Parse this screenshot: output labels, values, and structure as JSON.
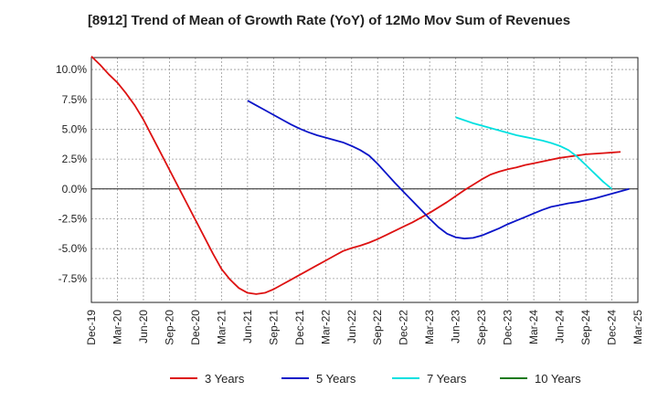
{
  "chart_data": {
    "type": "line",
    "title": "[8912]  Trend of Mean of Growth Rate (YoY) of 12Mo Mov Sum of Revenues",
    "xlabel": "",
    "ylabel": "",
    "ylim": [
      -9.5,
      11.0
    ],
    "y_ticks": [
      {
        "value": 10.0,
        "label": "10.0%"
      },
      {
        "value": 7.5,
        "label": "7.5%"
      },
      {
        "value": 5.0,
        "label": "5.0%"
      },
      {
        "value": 2.5,
        "label": "2.5%"
      },
      {
        "value": 0.0,
        "label": "0.0%"
      },
      {
        "value": -2.5,
        "label": "-2.5%"
      },
      {
        "value": -5.0,
        "label": "-5.0%"
      },
      {
        "value": -7.5,
        "label": "-7.5%"
      }
    ],
    "x_start": "Dec-19",
    "x_month_count": 63,
    "x_ticks": [
      "Dec-19",
      "Mar-20",
      "Jun-20",
      "Sep-20",
      "Dec-20",
      "Mar-21",
      "Jun-21",
      "Sep-21",
      "Dec-21",
      "Mar-22",
      "Jun-22",
      "Sep-22",
      "Dec-22",
      "Mar-23",
      "Jun-23",
      "Sep-23",
      "Dec-23",
      "Mar-24",
      "Jun-24",
      "Sep-24",
      "Dec-24",
      "Mar-25"
    ],
    "series": [
      {
        "name": "3 Years",
        "color": "#dd1111",
        "start_index": 0,
        "values": [
          11.1,
          10.4,
          9.6,
          8.9,
          8.0,
          7.0,
          5.8,
          4.4,
          3.0,
          1.6,
          0.2,
          -1.2,
          -2.6,
          -4.0,
          -5.4,
          -6.7,
          -7.6,
          -8.3,
          -8.7,
          -8.8,
          -8.7,
          -8.4,
          -8.0,
          -7.6,
          -7.2,
          -6.8,
          -6.4,
          -6.0,
          -5.6,
          -5.2,
          -4.95,
          -4.75,
          -4.5,
          -4.2,
          -3.85,
          -3.5,
          -3.15,
          -2.8,
          -2.4,
          -2.0,
          -1.55,
          -1.1,
          -0.6,
          -0.1,
          0.35,
          0.8,
          1.2,
          1.45,
          1.65,
          1.8,
          2.0,
          2.15,
          2.3,
          2.45,
          2.6,
          2.7,
          2.8,
          2.9,
          2.95,
          3.0,
          3.05,
          3.1
        ]
      },
      {
        "name": "5 Years",
        "color": "#0a14c8",
        "start_index": 18,
        "values": [
          7.4,
          7.0,
          6.6,
          6.2,
          5.8,
          5.4,
          5.05,
          4.75,
          4.5,
          4.3,
          4.1,
          3.9,
          3.6,
          3.25,
          2.8,
          2.1,
          1.3,
          0.5,
          -0.25,
          -1.0,
          -1.75,
          -2.5,
          -3.2,
          -3.75,
          -4.05,
          -4.15,
          -4.1,
          -3.9,
          -3.6,
          -3.3,
          -2.95,
          -2.65,
          -2.35,
          -2.05,
          -1.75,
          -1.5,
          -1.35,
          -1.2,
          -1.1,
          -0.95,
          -0.8,
          -0.6,
          -0.4,
          -0.2,
          0.0
        ]
      },
      {
        "name": "7 Years",
        "color": "#00e0e0",
        "start_index": 42,
        "values": [
          6.0,
          5.75,
          5.5,
          5.3,
          5.1,
          4.9,
          4.7,
          4.5,
          4.35,
          4.2,
          4.05,
          3.85,
          3.6,
          3.25,
          2.7,
          2.0,
          1.3,
          0.6,
          0.0
        ]
      },
      {
        "name": "10 Years",
        "color": "#1a7a1a",
        "start_index": 0,
        "values": []
      }
    ],
    "legend_position": "bottom",
    "grid": true
  }
}
